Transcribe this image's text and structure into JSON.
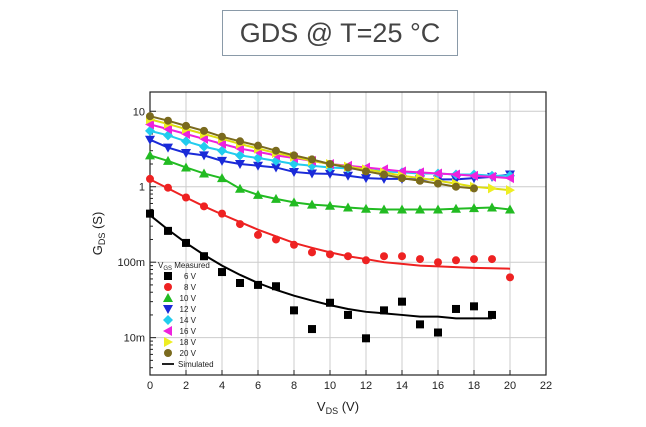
{
  "chart_data": {
    "type": "scatter",
    "title": "GDS @ T=25 °C",
    "xlabel": {
      "main": "V",
      "sub": "DS",
      "unit": " (V)"
    },
    "ylabel": {
      "main": "G",
      "sub": "DS",
      "unit": " (S)"
    },
    "xlim": [
      0,
      22
    ],
    "ylim": [
      0.0032,
      18
    ],
    "yscale": "log",
    "grid": true,
    "xticks": [
      "0",
      "2",
      "4",
      "6",
      "8",
      "10",
      "12",
      "14",
      "16",
      "18",
      "20",
      "22"
    ],
    "yticks": [
      {
        "value": 0.01,
        "label": "10m"
      },
      {
        "value": 0.1,
        "label": "100m"
      },
      {
        "value": 1,
        "label": "1"
      },
      {
        "value": 10,
        "label": "10"
      }
    ],
    "legend": {
      "placement": "bottom-left",
      "header_main": "V",
      "header_sub": "GS",
      "header_rest": " Measured",
      "simulated_label": "Simulated"
    },
    "series": [
      {
        "name": "6 V",
        "color": "#000000",
        "marker": "square",
        "x": [
          0,
          1,
          2,
          3,
          4,
          5,
          6,
          7,
          8,
          9,
          10,
          11,
          12,
          13,
          14,
          15,
          16,
          17,
          18,
          19
        ],
        "values": [
          0.44,
          0.26,
          0.18,
          0.12,
          0.074,
          0.053,
          0.05,
          0.048,
          0.023,
          0.013,
          0.029,
          0.02,
          0.0098,
          0.023,
          0.03,
          0.015,
          0.0117,
          0.024,
          0.026,
          0.02
        ],
        "simulated": [
          0.42,
          0.27,
          0.18,
          0.125,
          0.09,
          0.068,
          0.053,
          0.043,
          0.036,
          0.031,
          0.027,
          0.024,
          0.022,
          0.021,
          0.02,
          0.019,
          0.019,
          0.018,
          0.018,
          0.018
        ]
      },
      {
        "name": "8 V",
        "color": "#ee2222",
        "marker": "circle",
        "x": [
          0,
          1,
          2,
          3,
          4,
          5,
          6,
          7,
          8,
          9,
          10,
          11,
          12,
          13,
          14,
          15,
          16,
          17,
          18,
          19,
          20
        ],
        "values": [
          1.27,
          0.97,
          0.72,
          0.55,
          0.44,
          0.32,
          0.23,
          0.2,
          0.17,
          0.135,
          0.127,
          0.12,
          0.106,
          0.12,
          0.12,
          0.11,
          0.1,
          0.106,
          0.11,
          0.11,
          0.063
        ],
        "simulated": [
          1.25,
          0.95,
          0.72,
          0.55,
          0.43,
          0.34,
          0.27,
          0.22,
          0.18,
          0.155,
          0.135,
          0.12,
          0.11,
          0.1,
          0.095,
          0.09,
          0.088,
          0.086,
          0.084,
          0.083,
          0.082
        ]
      },
      {
        "name": "10 V",
        "color": "#22bb22",
        "marker": "triangle-up",
        "x": [
          0,
          1,
          2,
          3,
          4,
          5,
          6,
          7,
          8,
          9,
          10,
          11,
          12,
          13,
          14,
          15,
          16,
          17,
          18,
          19,
          20
        ],
        "values": [
          2.6,
          2.2,
          1.8,
          1.5,
          1.3,
          0.94,
          0.78,
          0.69,
          0.62,
          0.58,
          0.56,
          0.53,
          0.51,
          0.5,
          0.5,
          0.5,
          0.5,
          0.51,
          0.52,
          0.53,
          0.5
        ]
      },
      {
        "name": "12 V",
        "color": "#1a2ad8",
        "marker": "triangle-down",
        "x": [
          0,
          1,
          2,
          3,
          4,
          5,
          6,
          7,
          8,
          9,
          10,
          11,
          12,
          13,
          14,
          15,
          16,
          17,
          18,
          19,
          20
        ],
        "values": [
          4.2,
          3.3,
          2.8,
          2.6,
          2.2,
          2.0,
          1.9,
          1.8,
          1.57,
          1.5,
          1.48,
          1.4,
          1.3,
          1.27,
          1.27,
          1.25,
          1.25,
          1.25,
          1.3,
          1.35,
          1.45
        ]
      },
      {
        "name": "14 V",
        "color": "#22ccee",
        "marker": "diamond",
        "x": [
          0,
          1,
          2,
          3,
          4,
          5,
          6,
          7,
          8,
          9,
          10,
          11,
          12,
          13,
          14,
          15,
          16,
          17,
          18,
          19,
          20
        ],
        "values": [
          5.5,
          4.8,
          4.0,
          3.4,
          3.0,
          2.6,
          2.4,
          2.2,
          2.0,
          1.9,
          1.8,
          1.75,
          1.7,
          1.6,
          1.55,
          1.5,
          1.5,
          1.45,
          1.45,
          1.4,
          1.4
        ]
      },
      {
        "name": "16 V",
        "color": "#ee22dd",
        "marker": "triangle-left",
        "x": [
          0,
          1,
          2,
          3,
          4,
          5,
          6,
          7,
          8,
          9,
          10,
          11,
          12,
          13,
          14,
          15,
          16,
          17,
          18,
          19,
          20
        ],
        "values": [
          6.7,
          5.8,
          5.0,
          4.3,
          3.7,
          3.2,
          2.9,
          2.6,
          2.4,
          2.2,
          2.0,
          1.9,
          1.8,
          1.7,
          1.6,
          1.55,
          1.5,
          1.45,
          1.4,
          1.35,
          1.3
        ]
      },
      {
        "name": "18 V",
        "color": "#eeee22",
        "marker": "triangle-right",
        "x": [
          0,
          1,
          2,
          3,
          4,
          5,
          6,
          7,
          8,
          9,
          10,
          11,
          12,
          13,
          14,
          15,
          16,
          17,
          18,
          19,
          20
        ],
        "values": [
          7.8,
          6.8,
          5.8,
          5.0,
          4.3,
          3.7,
          3.2,
          2.8,
          2.5,
          2.2,
          2.0,
          1.85,
          1.7,
          1.55,
          1.4,
          1.3,
          1.2,
          1.1,
          1.0,
          0.95,
          0.9
        ]
      },
      {
        "name": "20 V",
        "color": "#7a6a1e",
        "marker": "circle",
        "x": [
          0,
          1,
          2,
          3,
          4,
          5,
          6,
          7,
          8,
          9,
          10,
          11,
          12,
          13,
          14,
          15,
          16,
          17,
          18
        ],
        "values": [
          8.6,
          7.5,
          6.4,
          5.5,
          4.6,
          4.0,
          3.5,
          3.0,
          2.6,
          2.3,
          2.0,
          1.8,
          1.6,
          1.45,
          1.3,
          1.2,
          1.1,
          1.0,
          0.95
        ]
      }
    ]
  }
}
